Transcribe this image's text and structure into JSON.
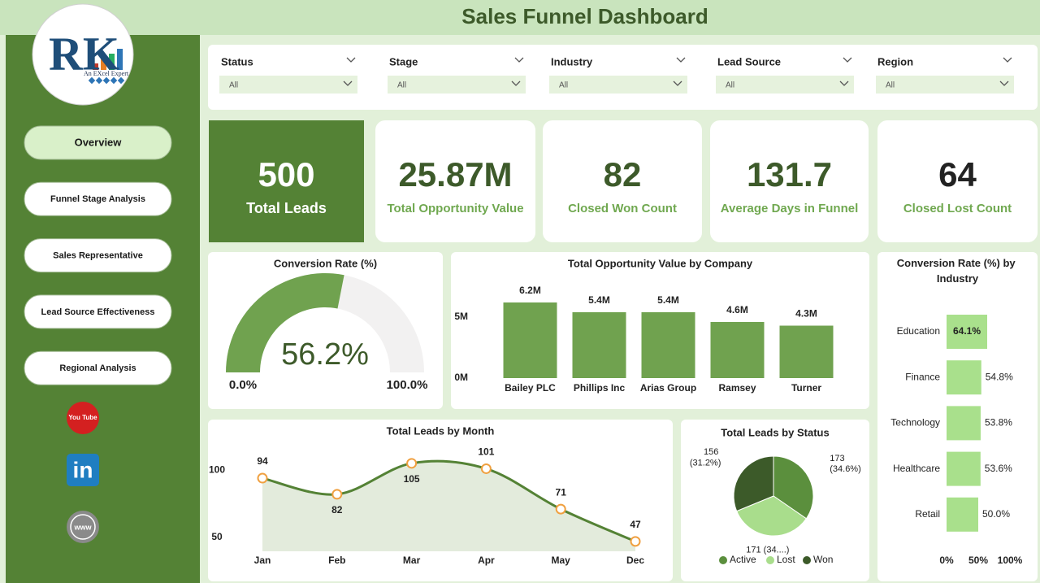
{
  "header": {
    "title": "Sales Funnel Dashboard"
  },
  "logo": {
    "mark": "RK",
    "tagline": "An EXcel Expert"
  },
  "nav": [
    "Overview",
    "Funnel Stage Analysis",
    "Sales Representative",
    "Lead Source Effectiveness",
    "Regional Analysis"
  ],
  "social": [
    "You Tube",
    "in",
    "www"
  ],
  "filters": [
    {
      "label": "Status",
      "value": "All"
    },
    {
      "label": "Stage",
      "value": "All"
    },
    {
      "label": "Industry",
      "value": "All"
    },
    {
      "label": "Lead Source",
      "value": "All"
    },
    {
      "label": "Region",
      "value": "All"
    }
  ],
  "kpis": [
    {
      "value": "500",
      "label": "Total Leads"
    },
    {
      "value": "25.87M",
      "label": "Total Opportunity Value"
    },
    {
      "value": "82",
      "label": "Closed Won Count"
    },
    {
      "value": "131.7",
      "label": "Average Days in Funnel"
    },
    {
      "value": "64",
      "label": "Closed Lost Count"
    }
  ],
  "chart_data": [
    {
      "type": "gauge",
      "title": "Conversion Rate (%)",
      "values": [
        56.2
      ],
      "value_labels": [
        "56.2%"
      ],
      "ylim": [
        0,
        100
      ],
      "yticks": [
        {
          "value": 0,
          "label": "0.0%"
        },
        {
          "value": 100,
          "label": "100.0%"
        }
      ],
      "color": "#70a24f",
      "track_color": "#f2f1f1"
    },
    {
      "type": "bar",
      "title": "Total Opportunity Value by Company",
      "categories": [
        "Bailey PLC",
        "Phillips Inc",
        "Arias Group",
        "Ramsey",
        "Turner"
      ],
      "values": [
        6200000,
        5400000,
        5400000,
        4600000,
        4300000
      ],
      "value_labels": [
        "6.2M",
        "5.4M",
        "5.4M",
        "4.6M",
        "4.3M"
      ],
      "ylim": [
        0,
        8000000
      ],
      "yticks": [
        {
          "value": 0,
          "label": "0M"
        },
        {
          "value": 5000000,
          "label": "5M"
        }
      ],
      "color": "#70a24f"
    },
    {
      "type": "hbar",
      "title": "Conversion Rate (%) by Industry",
      "categories": [
        "Education",
        "Finance",
        "Technology",
        "Healthcare",
        "Retail"
      ],
      "values": [
        64.1,
        54.8,
        53.8,
        53.6,
        50.0
      ],
      "value_labels": [
        "64.1%",
        "54.8%",
        "53.8%",
        "53.6%",
        "50.0%"
      ],
      "xlim": [
        0,
        100
      ],
      "xticks": [
        {
          "value": 0,
          "label": "0%"
        },
        {
          "value": 50,
          "label": "50%"
        },
        {
          "value": 100,
          "label": "100%"
        }
      ],
      "color": "#a9e08c"
    },
    {
      "type": "line",
      "title": "Total Leads by Month",
      "categories": [
        "Jan",
        "Feb",
        "Mar",
        "Apr",
        "May",
        "Dec"
      ],
      "values": [
        94,
        82,
        105,
        101,
        71,
        47
      ],
      "ylim": [
        30,
        120
      ],
      "yticks": [
        50,
        100
      ],
      "color": "#548235",
      "area_color": "#e3ebdc",
      "marker_color": "#f0a040"
    },
    {
      "type": "pie",
      "title": "Total Leads by Status",
      "categories": [
        "Active",
        "Lost",
        "Won"
      ],
      "values": [
        173,
        171,
        156
      ],
      "value_labels": [
        "173 (34.6%)",
        "171 (34....)",
        "156 (31.2%)"
      ],
      "colors": [
        "#5b8f3d",
        "#a9dd8c",
        "#3c5a29"
      ],
      "legend": "bottom"
    }
  ]
}
